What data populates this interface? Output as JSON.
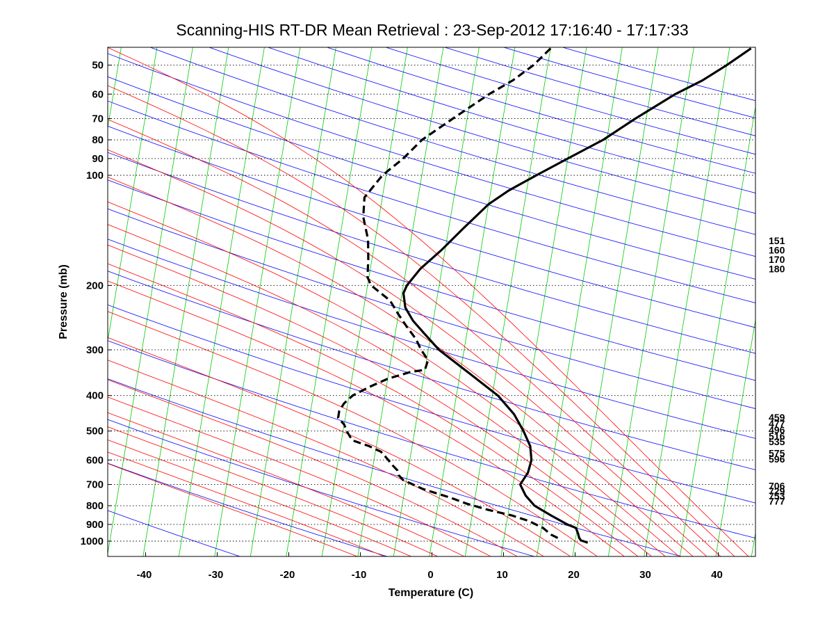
{
  "chart_data": {
    "type": "line",
    "title": "Scanning-HIS RT-DR Mean Retrieval : 23-Sep-2012 17:16:40 - 17:17:33",
    "xlabel": "Temperature (C)",
    "ylabel": "Pressure (mb)",
    "x_scale": "skew-T (log-pressure y)",
    "xlim": [
      -45,
      45
    ],
    "ylim": [
      1060,
      45
    ],
    "y_scale": "log",
    "grid": "horizontal dotted at pressure ticks",
    "x_ticks": [
      -40,
      -30,
      -20,
      -10,
      0,
      10,
      20,
      30,
      40
    ],
    "y_ticks": [
      50,
      60,
      70,
      80,
      90,
      100,
      200,
      300,
      400,
      500,
      600,
      700,
      800,
      900,
      1000
    ],
    "background_lines": {
      "isotherms_color": "#00cc00",
      "dry_adiabats_color": "#0000ff",
      "moist_adiabats_color": "#ff0000",
      "dry_adiabat_thetas_K": [
        220,
        240,
        260,
        280,
        300,
        320,
        340,
        360,
        380,
        400,
        420,
        440,
        460,
        480,
        500,
        520,
        540,
        560,
        580,
        600,
        620,
        640,
        660,
        680
      ],
      "moist_adiabat_start_temps_C": [
        -16,
        -12,
        -8,
        -4,
        0,
        4,
        8,
        12,
        16,
        20,
        24,
        26,
        28,
        30,
        32,
        34,
        36,
        38,
        40,
        42
      ]
    },
    "series": [
      {
        "style": "solid",
        "color": "#000000",
        "points": [
          {
            "p": 1010,
            "t": 21.8
          },
          {
            "p": 995,
            "t": 20.8
          },
          {
            "p": 980,
            "t": 20.5
          },
          {
            "p": 950,
            "t": 20.2
          },
          {
            "p": 920,
            "t": 19.8
          },
          {
            "p": 900,
            "t": 18.5
          },
          {
            "p": 850,
            "t": 16.0
          },
          {
            "p": 800,
            "t": 13.5
          },
          {
            "p": 750,
            "t": 12.0
          },
          {
            "p": 700,
            "t": 11.0
          },
          {
            "p": 650,
            "t": 11.8
          },
          {
            "p": 600,
            "t": 12.0
          },
          {
            "p": 550,
            "t": 11.5
          },
          {
            "p": 500,
            "t": 10.2
          },
          {
            "p": 450,
            "t": 8.5
          },
          {
            "p": 400,
            "t": 5.8
          },
          {
            "p": 350,
            "t": 1.5
          },
          {
            "p": 300,
            "t": -3.5
          },
          {
            "p": 270,
            "t": -6.0
          },
          {
            "p": 250,
            "t": -7.8
          },
          {
            "p": 230,
            "t": -9.2
          },
          {
            "p": 210,
            "t": -9.8
          },
          {
            "p": 200,
            "t": -9.5
          },
          {
            "p": 180,
            "t": -8.0
          },
          {
            "p": 160,
            "t": -5.5
          },
          {
            "p": 140,
            "t": -3.0
          },
          {
            "p": 120,
            "t": 0.0
          },
          {
            "p": 110,
            "t": 2.5
          },
          {
            "p": 100,
            "t": 6.0
          },
          {
            "p": 90,
            "t": 10.0
          },
          {
            "p": 80,
            "t": 14.5
          },
          {
            "p": 70,
            "t": 18.5
          },
          {
            "p": 60,
            "t": 23.5
          },
          {
            "p": 55,
            "t": 27.0
          },
          {
            "p": 50,
            "t": 30.0
          },
          {
            "p": 45,
            "t": 33.0
          }
        ]
      },
      {
        "style": "dashed",
        "color": "#000000",
        "points": [
          {
            "p": 980,
            "t": 17.5
          },
          {
            "p": 960,
            "t": 16.5
          },
          {
            "p": 920,
            "t": 15.2
          },
          {
            "p": 880,
            "t": 13.0
          },
          {
            "p": 850,
            "t": 10.5
          },
          {
            "p": 820,
            "t": 7.0
          },
          {
            "p": 790,
            "t": 4.0
          },
          {
            "p": 760,
            "t": 1.5
          },
          {
            "p": 740,
            "t": -0.5
          },
          {
            "p": 720,
            "t": -2.5
          },
          {
            "p": 700,
            "t": -4.0
          },
          {
            "p": 680,
            "t": -5.5
          },
          {
            "p": 660,
            "t": -6.2
          },
          {
            "p": 640,
            "t": -6.5
          },
          {
            "p": 620,
            "t": -7.3
          },
          {
            "p": 600,
            "t": -8.0
          },
          {
            "p": 570,
            "t": -9.2
          },
          {
            "p": 550,
            "t": -11.0
          },
          {
            "p": 530,
            "t": -13.5
          },
          {
            "p": 500,
            "t": -14.5
          },
          {
            "p": 480,
            "t": -15.0
          },
          {
            "p": 460,
            "t": -16.0
          },
          {
            "p": 440,
            "t": -16.0
          },
          {
            "p": 420,
            "t": -15.5
          },
          {
            "p": 400,
            "t": -14.5
          },
          {
            "p": 380,
            "t": -12.5
          },
          {
            "p": 360,
            "t": -10.0
          },
          {
            "p": 345,
            "t": -7.0
          },
          {
            "p": 340,
            "t": -5.0
          },
          {
            "p": 320,
            "t": -4.8
          },
          {
            "p": 300,
            "t": -6.0
          },
          {
            "p": 280,
            "t": -7.0
          },
          {
            "p": 260,
            "t": -8.5
          },
          {
            "p": 240,
            "t": -10.0
          },
          {
            "p": 220,
            "t": -11.5
          },
          {
            "p": 200,
            "t": -14.5
          },
          {
            "p": 190,
            "t": -15.2
          },
          {
            "p": 170,
            "t": -15.5
          },
          {
            "p": 150,
            "t": -16.0
          },
          {
            "p": 130,
            "t": -17.2
          },
          {
            "p": 115,
            "t": -17.5
          },
          {
            "p": 105,
            "t": -16.2
          },
          {
            "p": 100,
            "t": -15.5
          },
          {
            "p": 90,
            "t": -13.0
          },
          {
            "p": 80,
            "t": -10.8
          },
          {
            "p": 70,
            "t": -7.0
          },
          {
            "p": 60,
            "t": -2.5
          },
          {
            "p": 55,
            "t": 0.5
          },
          {
            "p": 50,
            "t": 3.0
          },
          {
            "p": 45,
            "t": 5.0
          }
        ]
      }
    ],
    "right_annotations": [
      {
        "text": "151",
        "p": 151
      },
      {
        "text": "160",
        "p": 160
      },
      {
        "text": "170",
        "p": 170
      },
      {
        "text": "180",
        "p": 180
      },
      {
        "text": "459",
        "p": 459
      },
      {
        "text": "477",
        "p": 477
      },
      {
        "text": "496",
        "p": 496
      },
      {
        "text": "516",
        "p": 516
      },
      {
        "text": "535",
        "p": 535
      },
      {
        "text": "575",
        "p": 575
      },
      {
        "text": "596",
        "p": 596
      },
      {
        "text": "706",
        "p": 706
      },
      {
        "text": "729",
        "p": 729
      },
      {
        "text": "753",
        "p": 753
      },
      {
        "text": "777",
        "p": 777
      }
    ]
  }
}
